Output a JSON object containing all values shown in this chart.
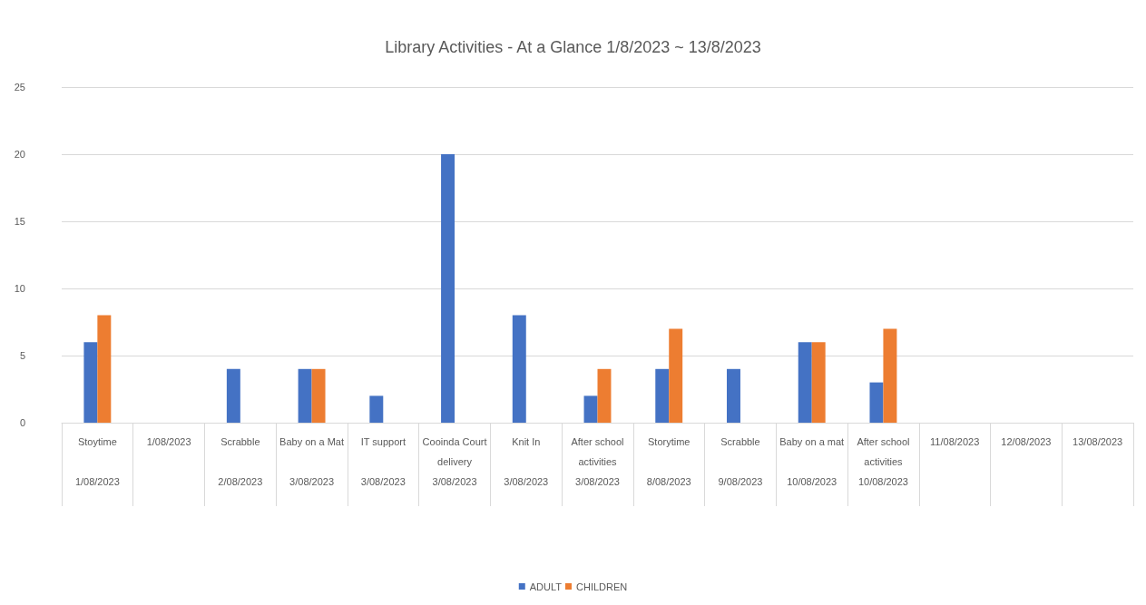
{
  "chart_data": {
    "type": "bar",
    "title": "Library Activities - At a Glance 1/8/2023 ~ 13/8/2023",
    "categories": [
      "Stoytime\n\n1/08/2023",
      "1/08/2023",
      "Scrabble\n\n2/08/2023",
      "Baby on a Mat\n\n3/08/2023",
      "IT support\n\n3/08/2023",
      "Cooinda Court delivery\n3/08/2023",
      "Knit In\n\n3/08/2023",
      "After school activities\n3/08/2023",
      "Storytime\n\n8/08/2023",
      "Scrabble\n\n9/08/2023",
      "Baby on a mat\n\n10/08/2023",
      "After school activities\n10/08/2023",
      "11/08/2023",
      "12/08/2023",
      "13/08/2023"
    ],
    "series": [
      {
        "name": "ADULT",
        "color": "#4472c4",
        "values": [
          6,
          null,
          4,
          4,
          2,
          20,
          8,
          2,
          4,
          4,
          6,
          3,
          null,
          null,
          null
        ]
      },
      {
        "name": "CHILDREN",
        "color": "#ed7d31",
        "values": [
          8,
          null,
          null,
          4,
          null,
          null,
          null,
          4,
          7,
          null,
          6,
          7,
          null,
          null,
          null
        ]
      }
    ],
    "ylim": [
      0,
      25
    ],
    "yticks": [
      0,
      5,
      10,
      15,
      20,
      25
    ],
    "grid": "y",
    "legend": "bottom"
  }
}
